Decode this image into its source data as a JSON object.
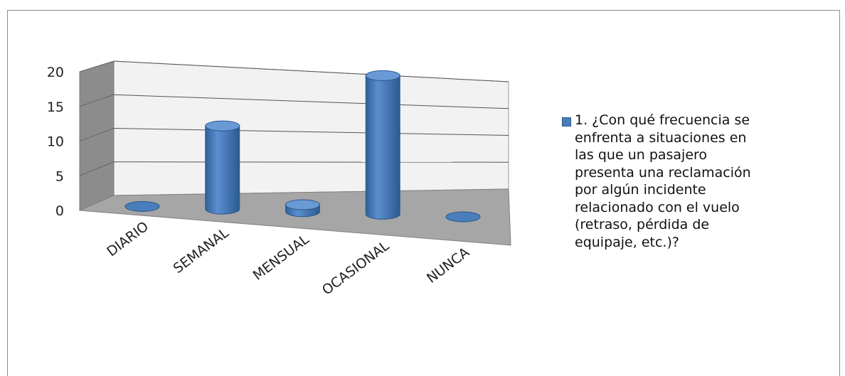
{
  "chart_data": {
    "type": "bar",
    "categories": [
      "DIARIO",
      "SEMANAL",
      "MENSUAL",
      "OCASIONAL",
      "NUNCA"
    ],
    "series": [
      {
        "name": "1. ¿Con qué frecuencia se\nenfrenta a situaciones en\nlas que un pasajero\npresenta una reclamación\npor algún incidente\nrelacionado con el vuelo\n(retraso, pérdida de\nequipaje, etc.)?",
        "values": [
          0,
          12,
          1,
          20,
          0
        ]
      }
    ],
    "yticks": [
      "0",
      "5",
      "10",
      "15",
      "20"
    ],
    "ylim": [
      0,
      20
    ],
    "grid": true,
    "legend": "right",
    "colors": {
      "bar": "#4a7ebb",
      "bar_dark": "#2c5a8f",
      "floor": "#a6a6a6",
      "wall": "#f2f2f2"
    }
  }
}
